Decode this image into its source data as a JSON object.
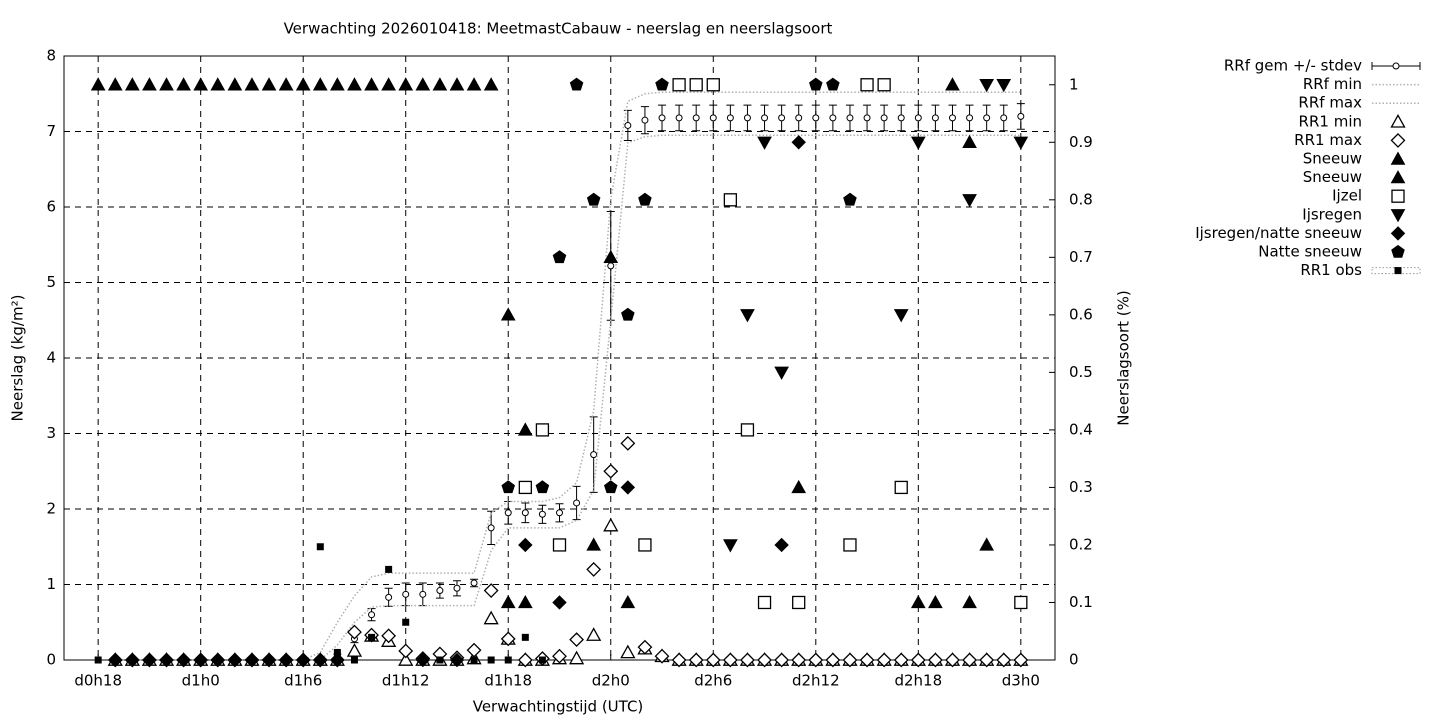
{
  "chart_data": {
    "type": "line",
    "title": "Verwachting 2026010418: MeetmastCabauw - neerslag en neerslagsoort",
    "x_label": "Verwachtingstijd (UTC)",
    "y_label": "Neerslag (kg/m²)",
    "y2_label": "Neerslagsoort (%)",
    "x": [
      0,
      1,
      2,
      3,
      4,
      5,
      6,
      7,
      8,
      9,
      10,
      11,
      12,
      13,
      14,
      15,
      16,
      17,
      18,
      19,
      20,
      21,
      22,
      23,
      24,
      25,
      26,
      27,
      28,
      29,
      30,
      31,
      32,
      33,
      34,
      35,
      36,
      37,
      38,
      39,
      40,
      41,
      42,
      43,
      44,
      45,
      46,
      47,
      48,
      49,
      50,
      51,
      52,
      53,
      54
    ],
    "xlim": [
      -2,
      56
    ],
    "xticks": [
      {
        "value": 0,
        "label": "d0h18"
      },
      {
        "value": 6,
        "label": "d1h0"
      },
      {
        "value": 12,
        "label": "d1h6"
      },
      {
        "value": 18,
        "label": "d1h12"
      },
      {
        "value": 24,
        "label": "d1h18"
      },
      {
        "value": 30,
        "label": "d2h0"
      },
      {
        "value": 36,
        "label": "d2h6"
      },
      {
        "value": 42,
        "label": "d2h12"
      },
      {
        "value": 48,
        "label": "d2h18"
      },
      {
        "value": 54,
        "label": "d3h0"
      }
    ],
    "ylim": [
      0,
      8
    ],
    "yticks": [
      0,
      1,
      2,
      3,
      4,
      5,
      6,
      7,
      8
    ],
    "y2lim": [
      0,
      1.05
    ],
    "y2ticks": [
      0,
      0.1,
      0.2,
      0.3,
      0.4,
      0.5,
      0.6,
      0.7,
      0.8,
      0.9,
      1
    ],
    "grid": true,
    "legend": "outside-top-right",
    "series": [
      {
        "name": "RRf gem +/- stdev",
        "color": "#000000",
        "style": "errorbars",
        "values": [
          null,
          0,
          0,
          0,
          0,
          0,
          0,
          0,
          0,
          0,
          0,
          0,
          0,
          0.01,
          0.05,
          0.28,
          0.6,
          0.83,
          0.87,
          0.87,
          0.92,
          0.95,
          1.02,
          1.75,
          1.95,
          1.95,
          1.93,
          1.95,
          2.08,
          2.72,
          5.22,
          7.08,
          7.15,
          7.18,
          7.18,
          7.18,
          7.18,
          7.18,
          7.18,
          7.18,
          7.18,
          7.18,
          7.18,
          7.18,
          7.18,
          7.18,
          7.18,
          7.18,
          7.18,
          7.18,
          7.18,
          7.18,
          7.18,
          7.18,
          7.2
        ],
        "errors": [
          null,
          0,
          0,
          0,
          0,
          0,
          0,
          0,
          0,
          0,
          0,
          0,
          0,
          0.01,
          0.03,
          0.05,
          0.08,
          0.12,
          0.15,
          0.15,
          0.1,
          0.1,
          0.05,
          0.22,
          0.15,
          0.13,
          0.12,
          0.12,
          0.22,
          0.5,
          0.72,
          0.2,
          0.18,
          0.17,
          0.17,
          0.17,
          0.17,
          0.17,
          0.17,
          0.17,
          0.17,
          0.17,
          0.17,
          0.17,
          0.17,
          0.17,
          0.17,
          0.17,
          0.17,
          0.17,
          0.17,
          0.17,
          0.17,
          0.17,
          0.17
        ]
      },
      {
        "name": "RRf min",
        "color": "#b0b0b0",
        "style": "dotted",
        "values": [
          null,
          0,
          0,
          0,
          0,
          0,
          0,
          0,
          0,
          0,
          0,
          0,
          0,
          0,
          0.2,
          0.5,
          0.7,
          0.72,
          0.72,
          0.72,
          0.72,
          0.72,
          0.72,
          1.45,
          1.75,
          1.75,
          1.75,
          1.75,
          1.85,
          2.25,
          4.5,
          6.85,
          6.93,
          6.95,
          6.95,
          6.95,
          6.95,
          6.95,
          6.95,
          6.95,
          6.95,
          6.95,
          6.95,
          6.95,
          6.95,
          6.95,
          6.95,
          6.95,
          6.95,
          6.95,
          6.95,
          6.95,
          6.95,
          6.95,
          6.95
        ]
      },
      {
        "name": "RRf max",
        "color": "#b0b0b0",
        "style": "dotted",
        "values": [
          null,
          0,
          0,
          0,
          0,
          0,
          0,
          0,
          0,
          0,
          0,
          0,
          0,
          0.1,
          0.5,
          0.85,
          1.1,
          1.15,
          1.15,
          1.15,
          1.15,
          1.15,
          1.15,
          1.95,
          2.1,
          2.1,
          2.1,
          2.15,
          2.35,
          3.3,
          6.1,
          7.4,
          7.5,
          7.52,
          7.52,
          7.52,
          7.52,
          7.52,
          7.52,
          7.52,
          7.52,
          7.52,
          7.52,
          7.52,
          7.52,
          7.52,
          7.52,
          7.52,
          7.52,
          7.52,
          7.52,
          7.52,
          7.52,
          7.52,
          7.52
        ]
      },
      {
        "name": "RR1 min",
        "color": "#000000",
        "style": "points",
        "marker": "triangle-open",
        "values": [
          null,
          0,
          0,
          0,
          0,
          0,
          0,
          0,
          0,
          0,
          0,
          0,
          0,
          0,
          0,
          0.12,
          0.32,
          0.25,
          0,
          0,
          0,
          0,
          0.02,
          0.55,
          0.28,
          0,
          0,
          0.02,
          0.02,
          0.33,
          1.78,
          0.1,
          0.15,
          0.05,
          0,
          0,
          0,
          0,
          0,
          0,
          0,
          0,
          0,
          0,
          0,
          0,
          0,
          0,
          0,
          0,
          0,
          0,
          0,
          0,
          0
        ]
      },
      {
        "name": "RR1 max",
        "color": "#000000",
        "style": "points",
        "marker": "diamond-open",
        "values": [
          null,
          0,
          0,
          0,
          0,
          0,
          0,
          0,
          0,
          0,
          0,
          0,
          0,
          0,
          0,
          0.37,
          0.33,
          0.32,
          0.12,
          0.02,
          0.08,
          0.03,
          0.13,
          0.92,
          0.28,
          0,
          0.02,
          0.05,
          0.27,
          1.2,
          2.5,
          2.87,
          0.17,
          0.05,
          0,
          0,
          0,
          0,
          0,
          0,
          0,
          0,
          0,
          0,
          0,
          0,
          0,
          0,
          0,
          0,
          0,
          0,
          0,
          0,
          0
        ]
      },
      {
        "name": "Sneeuw",
        "color": "#000000",
        "style": "points",
        "marker": "triangle",
        "axis": "y2",
        "values": [
          1,
          1,
          1,
          1,
          1,
          1,
          1,
          1,
          1,
          1,
          1,
          1,
          1,
          1,
          1,
          1,
          1,
          1,
          1,
          1,
          1,
          1,
          1,
          1,
          0.6,
          0.4,
          null,
          null,
          null,
          0.2,
          0.7,
          0.1,
          null,
          null,
          null,
          null,
          null,
          null,
          null,
          null,
          null,
          0.3,
          null,
          null,
          null,
          null,
          null,
          null,
          0.1,
          null,
          1,
          0.9,
          0.2,
          null,
          null
        ]
      },
      {
        "name": "Sneeuw",
        "color": "#000000",
        "style": "points",
        "marker": "triangle",
        "axis": "y2",
        "values": [
          null,
          null,
          null,
          null,
          null,
          null,
          null,
          null,
          null,
          null,
          null,
          null,
          null,
          null,
          null,
          null,
          null,
          null,
          null,
          null,
          null,
          null,
          null,
          null,
          0.1,
          0.1,
          null,
          null,
          null,
          null,
          null,
          null,
          null,
          null,
          null,
          null,
          null,
          null,
          null,
          null,
          null,
          null,
          null,
          null,
          null,
          null,
          null,
          null,
          null,
          0.1,
          null,
          0.1,
          null,
          null,
          null
        ]
      },
      {
        "name": "Ijzel",
        "color": "#000000",
        "style": "points",
        "marker": "square-open",
        "axis": "y2",
        "values": [
          null,
          null,
          null,
          null,
          null,
          null,
          null,
          null,
          null,
          null,
          null,
          null,
          null,
          null,
          null,
          null,
          null,
          null,
          null,
          null,
          null,
          null,
          null,
          null,
          null,
          0.3,
          0.4,
          0.2,
          null,
          null,
          null,
          null,
          0.2,
          null,
          1,
          1,
          1,
          0.8,
          0.4,
          0.1,
          null,
          0.1,
          null,
          null,
          0.2,
          1,
          1,
          0.3,
          null,
          null,
          null,
          null,
          null,
          null,
          0.1
        ]
      },
      {
        "name": "Ijsregen",
        "color": "#000000",
        "style": "points",
        "marker": "triangle-down",
        "axis": "y2",
        "values": [
          null,
          null,
          null,
          null,
          null,
          null,
          null,
          null,
          null,
          null,
          null,
          null,
          null,
          null,
          null,
          null,
          null,
          null,
          null,
          null,
          null,
          null,
          null,
          null,
          null,
          null,
          null,
          null,
          null,
          null,
          null,
          null,
          null,
          null,
          null,
          null,
          null,
          0.2,
          0.6,
          0.9,
          0.5,
          null,
          null,
          null,
          null,
          null,
          null,
          0.6,
          0.9,
          null,
          null,
          0.8,
          1,
          1,
          0.9
        ]
      },
      {
        "name": "Ijsregen/natte sneeuw",
        "color": "#000000",
        "style": "points",
        "marker": "diamond",
        "axis": "y2",
        "values": [
          null,
          0,
          0,
          0,
          0,
          0,
          0,
          0,
          0,
          0,
          0,
          0,
          0,
          0,
          0,
          null,
          null,
          null,
          null,
          0,
          null,
          0,
          null,
          null,
          null,
          0.2,
          null,
          0.1,
          null,
          null,
          null,
          0.3,
          null,
          null,
          null,
          null,
          null,
          null,
          null,
          null,
          0.2,
          0.9,
          null,
          null,
          null,
          null,
          null,
          null,
          null,
          null,
          null,
          null,
          null,
          null,
          null
        ]
      },
      {
        "name": "Natte sneeuw",
        "color": "#000000",
        "style": "points",
        "marker": "pentagon",
        "axis": "y2",
        "values": [
          null,
          null,
          null,
          null,
          null,
          null,
          null,
          null,
          null,
          null,
          null,
          null,
          null,
          null,
          null,
          null,
          null,
          null,
          null,
          null,
          null,
          null,
          null,
          null,
          0.3,
          null,
          0.3,
          0.7,
          1,
          0.8,
          0.3,
          0.6,
          0.8,
          1,
          null,
          null,
          null,
          null,
          null,
          null,
          null,
          null,
          1,
          1,
          0.8,
          null,
          null,
          null,
          null,
          null,
          null,
          null,
          null,
          null,
          null
        ]
      },
      {
        "name": "RR1 obs",
        "color": "#000000",
        "style": "points",
        "marker": "square-small",
        "values": [
          0,
          0,
          0,
          0,
          0,
          0,
          0,
          0,
          0,
          0,
          0,
          0,
          0,
          1.5,
          0.1,
          0,
          0.3,
          1.2,
          0.5,
          0,
          0,
          0,
          0,
          0,
          0,
          0.3,
          0,
          null,
          null,
          null,
          null,
          null,
          null,
          null,
          null,
          null,
          null,
          null,
          null,
          null,
          null,
          null,
          null,
          null,
          null,
          null,
          null,
          null,
          null,
          null,
          null,
          null,
          null,
          null,
          null
        ]
      }
    ]
  }
}
